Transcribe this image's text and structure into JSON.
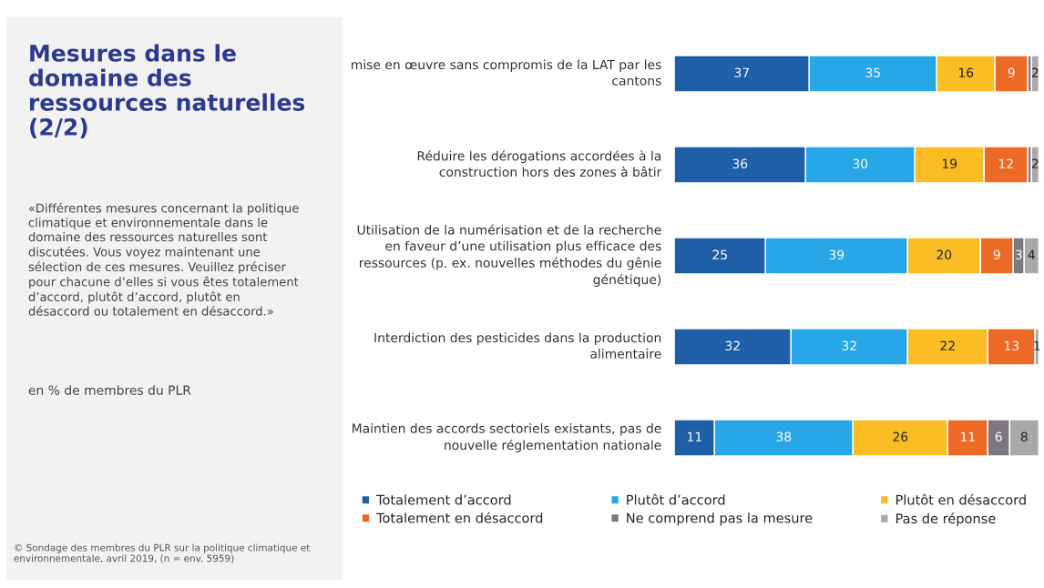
{
  "chart_data": {
    "type": "bar",
    "orientation": "horizontal",
    "stacked": true,
    "title": "Mesures dans le domaine des ressources naturelles (2/2)",
    "subtitle": "«Différentes mesures concernant la politique climatique et environnementale dans le domaine des ressources naturelles sont discutées. Vous voyez maintenant une sélection de ces mesures. Veuillez préciser pour chacune d’elles si vous êtes totalement d’accord, plutôt d’accord, plutôt en désaccord ou totalement en désaccord.»",
    "annotations": [
      "en % de membres du PLR",
      "© Sondage des membres du PLR sur la politique climatique et environnementale, avril 2019, (n = env. 5959)"
    ],
    "categories": [
      "mise en œuvre sans compromis de la LAT par les cantons",
      "Réduire les dérogations accordées à la construction hors des zones à bâtir",
      "Utilisation de la numérisation et de la recherche en faveur d’une utilisation plus efficace des ressources (p. ex. nouvelles méthodes du gênie génétique)",
      "Interdiction des pesticides dans la production alimentaire",
      "Maintien des accords sectoriels existants, pas de nouvelle réglementation nationale"
    ],
    "series": [
      {
        "name": "Totalement d’accord",
        "color": "#1f5fa8",
        "values": [
          37,
          36,
          25,
          32,
          11
        ],
        "value_labels": [
          "37",
          "36",
          "25",
          "32",
          "11"
        ]
      },
      {
        "name": "Plutôt d’accord",
        "color": "#27a7e7",
        "values": [
          35,
          30,
          39,
          32,
          38
        ],
        "value_labels": [
          "35",
          "30",
          "39",
          "32",
          "38"
        ]
      },
      {
        "name": "Plutôt en désaccord",
        "color": "#fbbd24",
        "values": [
          16,
          19,
          20,
          22,
          26
        ],
        "value_labels": [
          "16",
          "19",
          "20",
          "22",
          "26"
        ]
      },
      {
        "name": "Totalement en désaccord",
        "color": "#ec6a25",
        "values": [
          9,
          12,
          9,
          13,
          11
        ],
        "value_labels": [
          "9",
          "12",
          "9",
          "13",
          "11"
        ]
      },
      {
        "name": "Ne comprend pas la mesure",
        "color": "#7d7880",
        "values": [
          1,
          1,
          3,
          0,
          6
        ],
        "value_labels": [
          null,
          null,
          "3",
          null,
          "6"
        ]
      },
      {
        "name": "Pas de réponse",
        "color": "#a9a9a9",
        "values": [
          2,
          2,
          4,
          1,
          8
        ],
        "value_labels": [
          "2",
          "2",
          "4",
          "1",
          "8"
        ]
      }
    ],
    "legend": "bottom"
  }
}
